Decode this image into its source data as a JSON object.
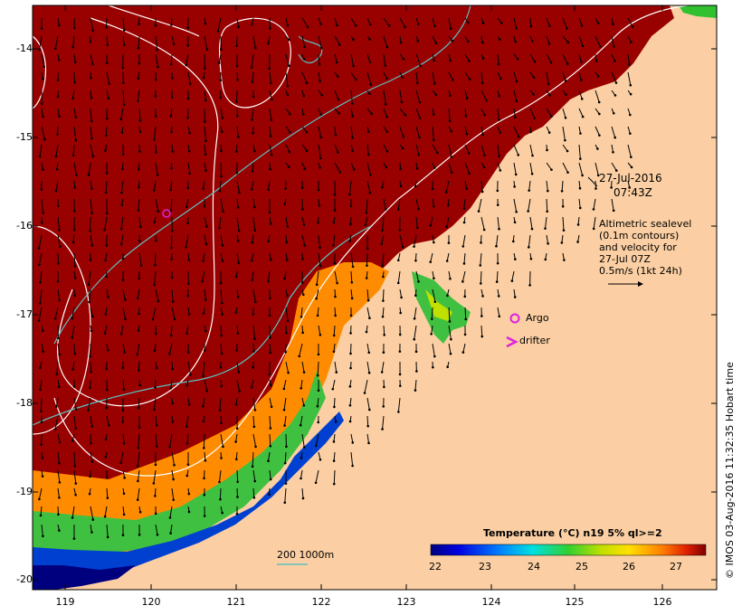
{
  "map": {
    "y_ticks": [
      "-14",
      "-15",
      "-16",
      "-17",
      "-18",
      "-19",
      "-20"
    ],
    "x_ticks": [
      "119",
      "120",
      "121",
      "122",
      "123",
      "124",
      "125",
      "126"
    ],
    "timestamp_date": "27-Jul-2016",
    "timestamp_time": "07:43Z",
    "legend_lines": [
      "Altimetric sealevel",
      "(0.1m contours)",
      "and velocity for",
      "27-Jul 07Z",
      "0.5m/s (1kt 24h)"
    ],
    "argo_label": "Argo",
    "drifter_label": "drifter",
    "depth_label": "200  1000m",
    "colorbar_title": "Temperature (°C) n19 5% ql>=2",
    "colorbar_ticks": [
      "22",
      "23",
      "24",
      "25",
      "26",
      "27"
    ],
    "credit": "© IMOS 03-Aug-2016 11:32:35 Hobart time",
    "colors": {
      "sea_hot": "#990000",
      "land": "#fbcfa3",
      "contour_sealevel": "#ffffff",
      "contour_depth": "#5fbfbf",
      "argo": "#e020e0",
      "drifter": "#e020e0"
    }
  }
}
